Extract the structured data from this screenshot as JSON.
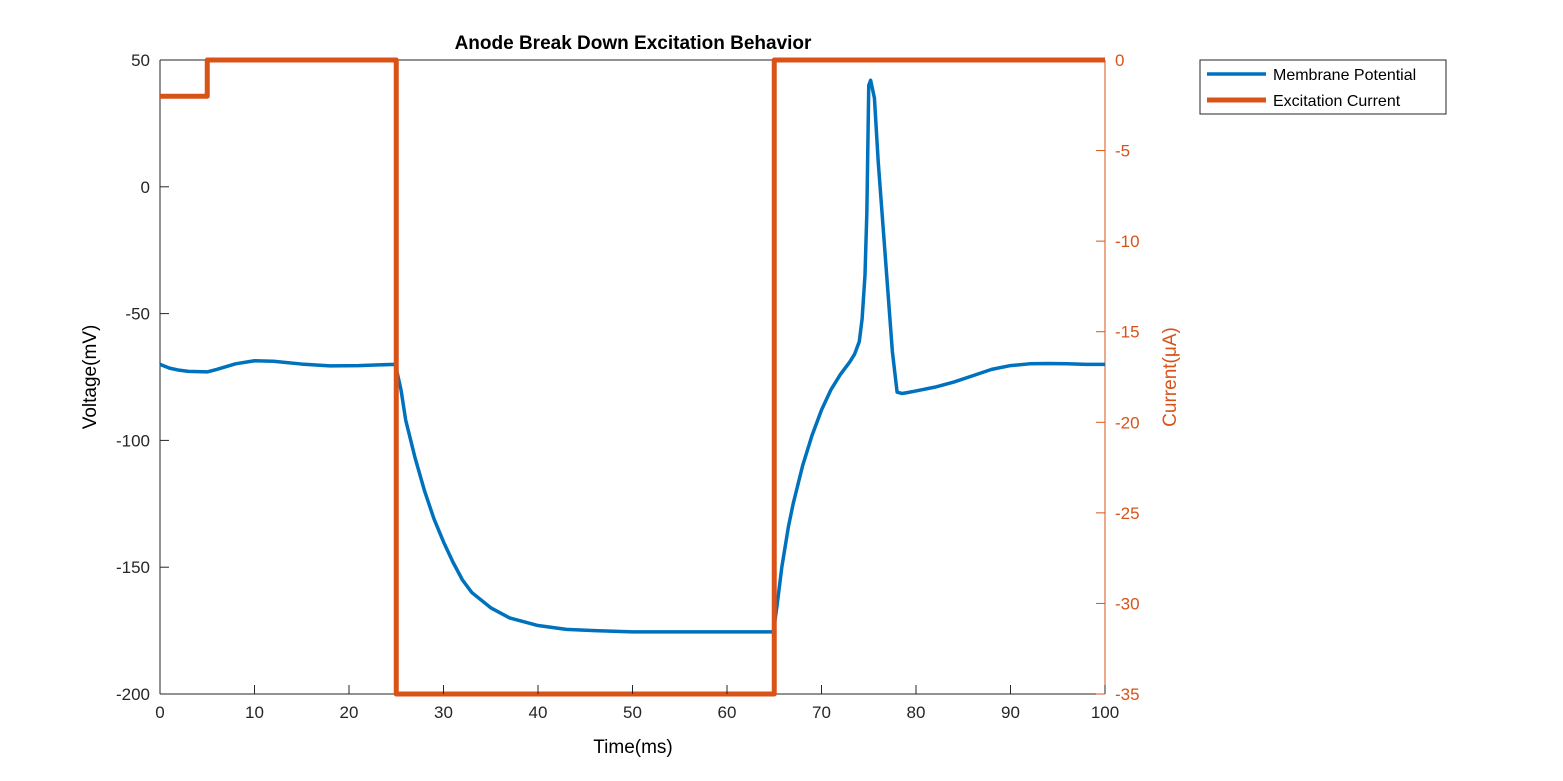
{
  "chart_data": {
    "type": "line",
    "title": "Anode Break Down Excitation Behavior",
    "xlabel": "Time(ms)",
    "ylabel": "Voltage(mV)",
    "ylabel_right": "Current(μA)",
    "xlim": [
      0,
      100
    ],
    "ylim": [
      -200,
      50
    ],
    "ylim_right": [
      -35,
      0
    ],
    "x_ticks": [
      "0",
      "10",
      "20",
      "30",
      "40",
      "50",
      "60",
      "70",
      "80",
      "90",
      "100"
    ],
    "y_ticks": [
      "50",
      "0",
      "-50",
      "-100",
      "-150",
      "-200"
    ],
    "y_ticks_right": [
      "0",
      "-5",
      "-10",
      "-15",
      "-20",
      "-25",
      "-30",
      "-35"
    ],
    "grid": false,
    "legend_position": "outside-top-right",
    "colors": {
      "voltage": "#0072BD",
      "current": "#D95319"
    },
    "series": [
      {
        "name": "Membrane Potential",
        "axis": "left",
        "x": [
          0,
          1,
          2,
          3,
          5,
          6,
          8,
          10,
          12,
          15,
          18,
          21,
          24.9,
          25.5,
          26,
          27,
          28,
          29,
          30,
          31,
          32,
          33,
          35,
          37,
          40,
          43,
          46,
          50,
          55,
          60,
          64.9,
          65.3,
          65.8,
          66.5,
          67,
          68,
          69,
          70,
          71,
          72,
          73,
          73.5,
          74,
          74.3,
          74.6,
          74.8,
          75.0,
          75.2,
          75.6,
          76,
          76.5,
          77,
          77.5,
          78,
          78.5,
          79,
          80,
          82,
          84,
          86,
          88,
          90,
          92,
          94,
          96,
          98,
          100
        ],
        "values": [
          -70,
          -71.5,
          -72.3,
          -72.8,
          -73,
          -72,
          -69.8,
          -68.6,
          -68.8,
          -69.9,
          -70.6,
          -70.5,
          -70,
          -80,
          -92,
          -107,
          -120,
          -131,
          -140,
          -148,
          -155,
          -160,
          -166,
          -170,
          -173,
          -174.5,
          -175,
          -175.5,
          -175.5,
          -175.5,
          -175.5,
          -165,
          -150,
          -134,
          -125,
          -110,
          -98,
          -88,
          -80,
          -74,
          -69,
          -66,
          -61,
          -52,
          -35,
          -10,
          40,
          42,
          35,
          10,
          -15,
          -40,
          -65,
          -81,
          -81.5,
          -81.2,
          -80.5,
          -79,
          -77,
          -74.5,
          -72,
          -70.5,
          -69.8,
          -69.7,
          -69.8,
          -70,
          -70
        ]
      },
      {
        "name": "Excitation Current",
        "axis": "right",
        "x": [
          0,
          5,
          5,
          25,
          25,
          65,
          65,
          100
        ],
        "values": [
          -2,
          -2,
          0,
          0,
          -35,
          -35,
          0,
          0
        ]
      }
    ]
  }
}
